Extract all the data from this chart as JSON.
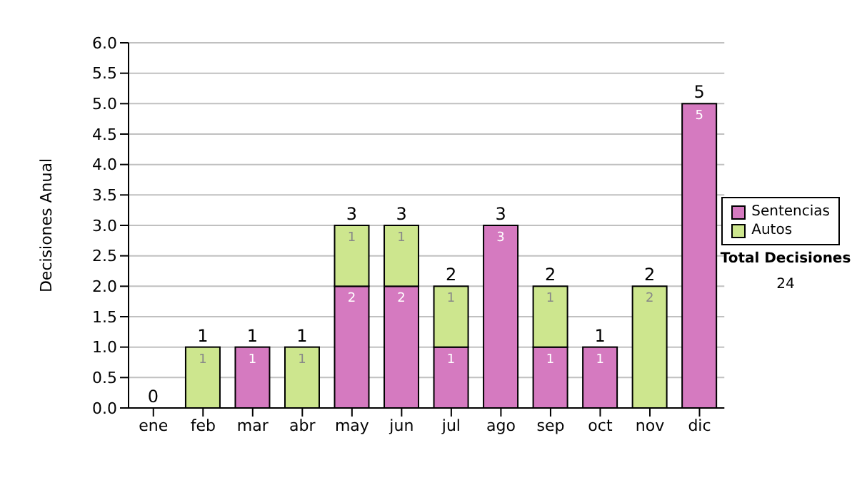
{
  "chart_data": {
    "type": "bar",
    "stacked": true,
    "ylabel": "Decisiones Anual",
    "categories": [
      "ene",
      "feb",
      "mar",
      "abr",
      "may",
      "jun",
      "jul",
      "ago",
      "sep",
      "oct",
      "nov",
      "dic"
    ],
    "series": [
      {
        "name": "Sentencias",
        "color": "#d57ac0",
        "values": [
          0,
          0,
          1,
          0,
          2,
          2,
          1,
          3,
          1,
          1,
          0,
          5
        ],
        "value_labels": [
          null,
          null,
          "1",
          null,
          "2",
          "2",
          "1",
          "3",
          "1",
          "1",
          null,
          "5"
        ]
      },
      {
        "name": "Autos",
        "color": "#cde68e",
        "values": [
          0,
          1,
          0,
          1,
          1,
          1,
          1,
          0,
          1,
          0,
          2,
          0
        ],
        "value_labels": [
          null,
          "1",
          null,
          "1",
          "1",
          "1",
          "1",
          null,
          "1",
          null,
          "2",
          null
        ]
      }
    ],
    "totals": [
      "0",
      "1",
      "1",
      "1",
      "3",
      "3",
      "2",
      "3",
      "2",
      "1",
      "2",
      "5"
    ],
    "ylim": [
      0,
      6
    ],
    "yticks": [
      {
        "value": 0,
        "label": "0.0"
      },
      {
        "value": 0.5,
        "label": "0.5"
      },
      {
        "value": 1,
        "label": "1.0"
      },
      {
        "value": 1.5,
        "label": "1.5"
      },
      {
        "value": 2,
        "label": "2.0"
      },
      {
        "value": 2.5,
        "label": "2.5"
      },
      {
        "value": 3,
        "label": "3.0"
      },
      {
        "value": 3.5,
        "label": "3.5"
      },
      {
        "value": 4,
        "label": "4.0"
      },
      {
        "value": 4.5,
        "label": "4.5"
      },
      {
        "value": 5,
        "label": "5.0"
      },
      {
        "value": 5.5,
        "label": "5.5"
      },
      {
        "value": 6,
        "label": "6.0"
      }
    ],
    "grid": "y",
    "legend": "right",
    "annotations": [
      "Total Decisiones",
      "24"
    ]
  }
}
